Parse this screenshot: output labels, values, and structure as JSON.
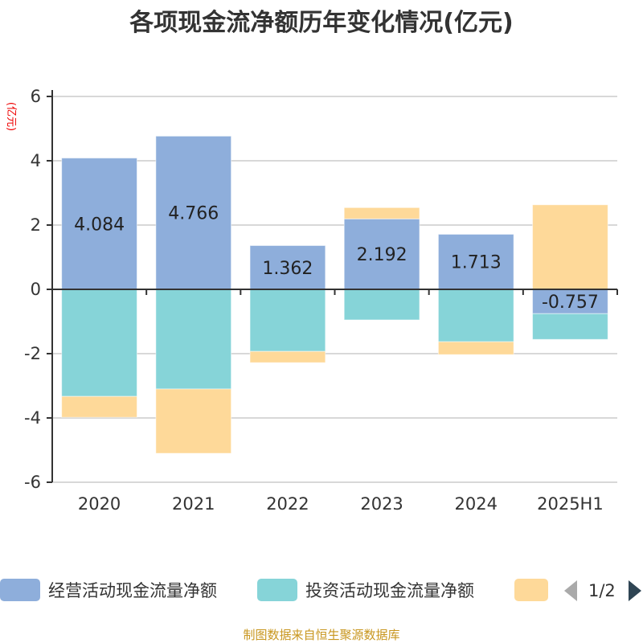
{
  "chart_data": {
    "type": "bar",
    "stacked": true,
    "title": "各项现金流净额历年变化情况(亿元)",
    "ylabel": "(亿元)",
    "ylim": [
      -6,
      6
    ],
    "yticks": [
      -6,
      -4,
      -2,
      0,
      2,
      4,
      6
    ],
    "grid": true,
    "categories": [
      "2020",
      "2021",
      "2022",
      "2023",
      "2024",
      "2025H1"
    ],
    "series": [
      {
        "name": "经营活动现金流量净额",
        "color": "#8eaedb",
        "values": [
          4.084,
          4.766,
          1.362,
          2.192,
          1.713,
          -0.757
        ],
        "labels": [
          "4.084",
          "4.766",
          "1.362",
          "2.192",
          "1.713",
          "-0.757"
        ]
      },
      {
        "name": "投资活动现金流量净额",
        "color": "#86d4d8",
        "values": [
          -3.33,
          -3.1,
          -1.93,
          -0.95,
          -1.63,
          -0.8
        ]
      },
      {
        "name": "",
        "color": "#fed999",
        "values": [
          -0.65,
          -2.0,
          -0.35,
          0.35,
          -0.4,
          2.63
        ]
      }
    ],
    "legend": {
      "placement": "bottom",
      "page": "1/2"
    },
    "source": "制图数据来自恒生聚源数据库"
  }
}
